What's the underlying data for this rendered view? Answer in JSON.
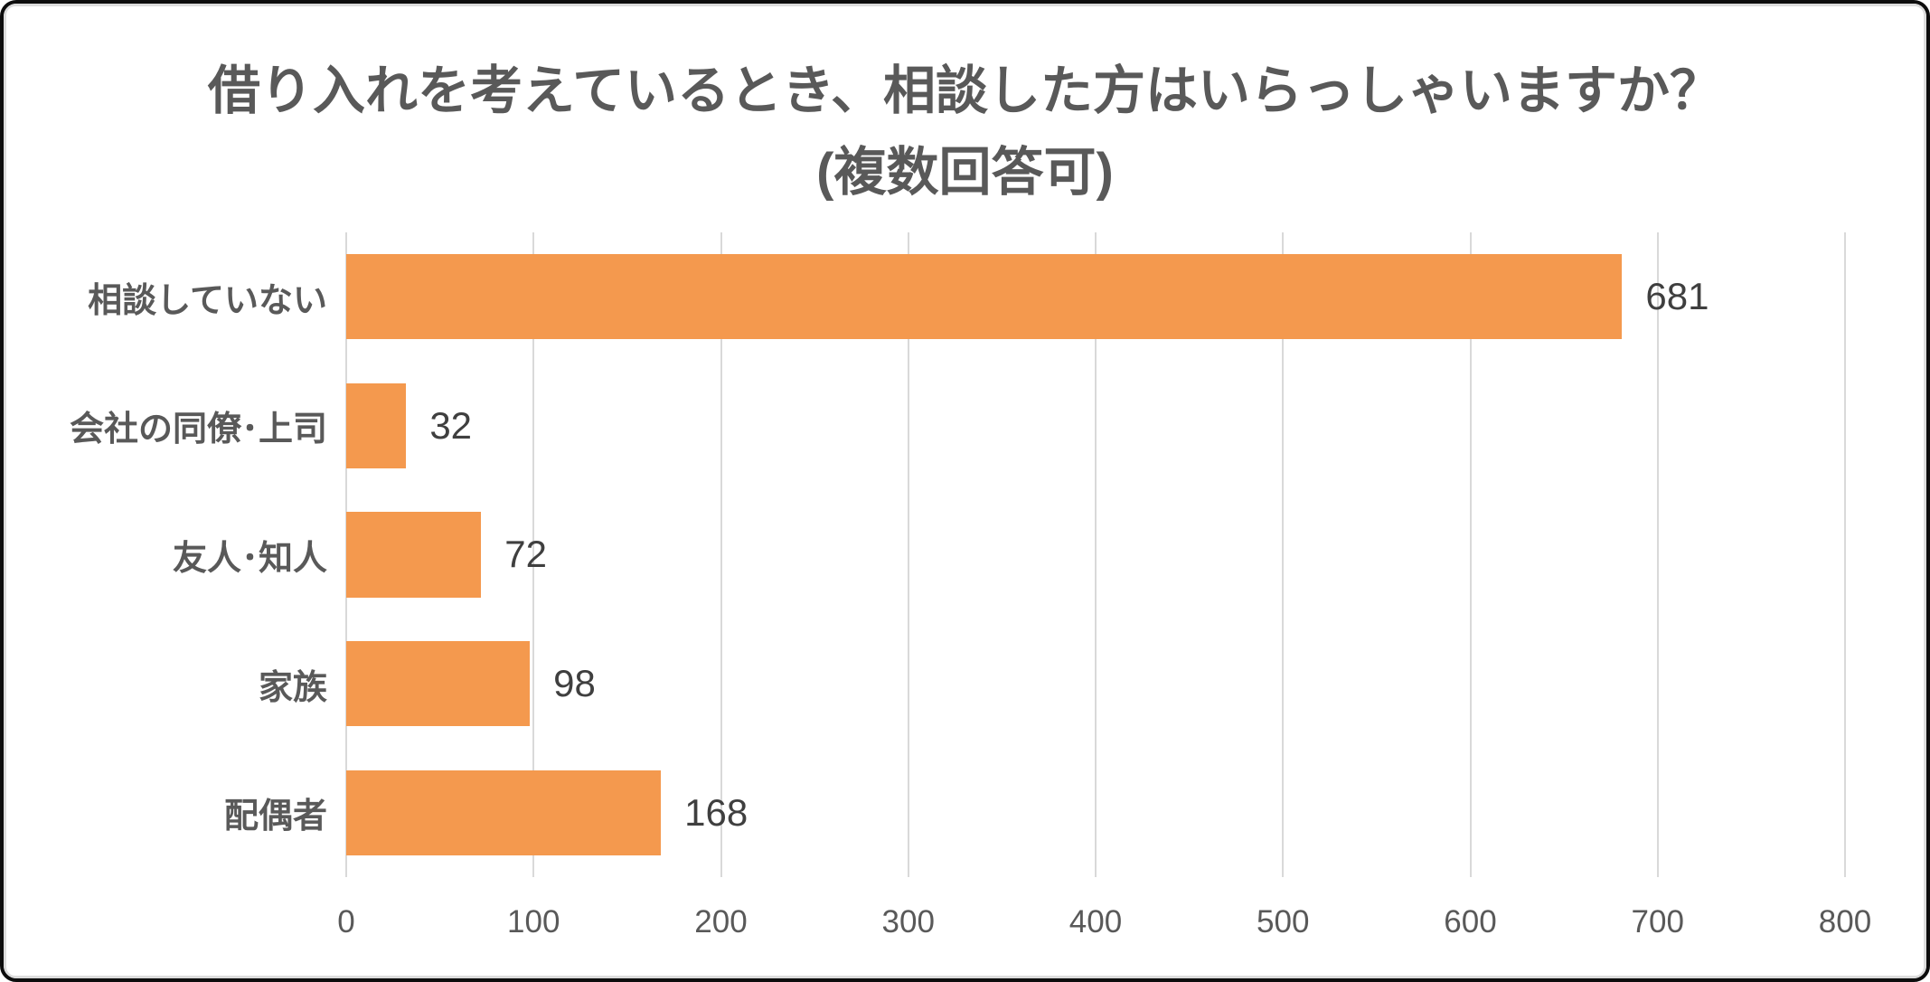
{
  "chart": {
    "title_line1": "借り入れを考えているとき、相談した方はいらっしゃいますか？",
    "title_line2": "(複数回答可)"
  },
  "chart_data": {
    "type": "bar",
    "orientation": "horizontal",
    "title": "借り入れを考えているとき、相談した方はいらっしゃいますか？ (複数回答可)",
    "categories": [
      "相談していない",
      "会社の同僚･上司",
      "友人･知人",
      "家族",
      "配偶者"
    ],
    "values": [
      681,
      32,
      72,
      98,
      168
    ],
    "xlim": [
      0,
      800
    ],
    "x_ticks": [
      "0",
      "100",
      "200",
      "300",
      "400",
      "500",
      "600",
      "700",
      "800"
    ],
    "grid": true,
    "legend": false,
    "bar_color": "#F4994E",
    "gridline_color": "#D9D9D9",
    "title_color": "#595959",
    "category_label_color": "#595959",
    "value_label_color": "#3F3F3F",
    "tick_label_color": "#595959",
    "frame_border_color": "#0D0D0D",
    "inner_border_color": "#DCDCDC",
    "background_color": "#FFFFFF"
  }
}
